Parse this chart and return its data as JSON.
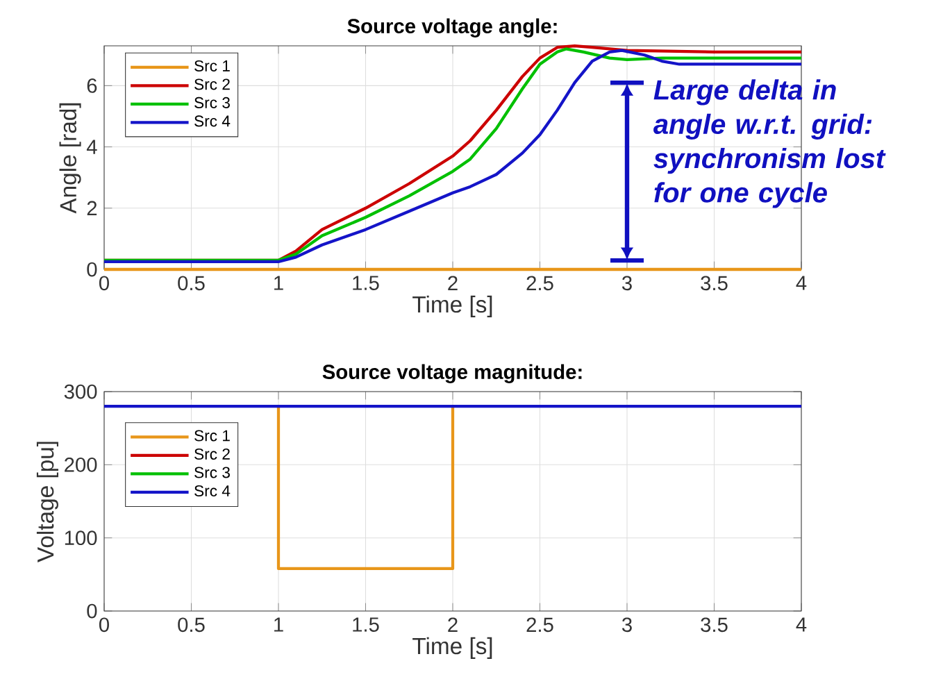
{
  "chart_data": [
    {
      "type": "line",
      "title": "Source voltage angle:",
      "xlabel": "Time [s]",
      "ylabel": "Angle [rad]",
      "xlim": [
        0,
        4
      ],
      "xticks": [
        0,
        0.5,
        1,
        1.5,
        2,
        2.5,
        3,
        3.5,
        4
      ],
      "ylim": [
        0,
        7.3
      ],
      "yticks": [
        0,
        2,
        4,
        6
      ],
      "grid": true,
      "legend": "top left",
      "line_style": "solid",
      "series": [
        {
          "name": "Src 1",
          "color": "#e8961a",
          "x": [
            0,
            4
          ],
          "values": [
            0,
            0
          ]
        },
        {
          "name": "Src 2",
          "color": "#cc0000",
          "x": [
            0,
            1,
            1.1,
            1.25,
            1.5,
            1.75,
            2,
            2.1,
            2.25,
            2.4,
            2.5,
            2.6,
            2.7,
            2.8,
            3,
            3.5,
            4
          ],
          "values": [
            0.3,
            0.3,
            0.6,
            1.3,
            2.0,
            2.8,
            3.7,
            4.2,
            5.2,
            6.3,
            6.9,
            7.25,
            7.3,
            7.25,
            7.15,
            7.1,
            7.1
          ]
        },
        {
          "name": "Src 3",
          "color": "#00c000",
          "x": [
            0,
            1,
            1.1,
            1.25,
            1.5,
            1.75,
            2,
            2.1,
            2.25,
            2.4,
            2.5,
            2.6,
            2.65,
            2.75,
            2.9,
            3,
            3.2,
            3.5,
            4
          ],
          "values": [
            0.3,
            0.3,
            0.5,
            1.1,
            1.7,
            2.4,
            3.2,
            3.6,
            4.6,
            5.9,
            6.7,
            7.1,
            7.2,
            7.1,
            6.9,
            6.85,
            6.9,
            6.9,
            6.9
          ]
        },
        {
          "name": "Src 4",
          "color": "#1414c8",
          "x": [
            0,
            1,
            1.1,
            1.25,
            1.5,
            1.75,
            2,
            2.1,
            2.25,
            2.4,
            2.5,
            2.6,
            2.7,
            2.8,
            2.9,
            2.97,
            3.1,
            3.2,
            3.3,
            3.5,
            4
          ],
          "values": [
            0.25,
            0.25,
            0.4,
            0.8,
            1.3,
            1.9,
            2.5,
            2.7,
            3.1,
            3.8,
            4.4,
            5.2,
            6.1,
            6.8,
            7.1,
            7.15,
            7.0,
            6.8,
            6.7,
            6.7,
            6.7
          ]
        }
      ],
      "annotations": [
        "Large delta in angle w.r.t. grid: synchronism lost for one cycle"
      ]
    },
    {
      "type": "line",
      "title": "Source voltage magnitude:",
      "xlabel": "Time [s]",
      "ylabel": "Voltage [pu]",
      "xlim": [
        0,
        4
      ],
      "xticks": [
        0,
        0.5,
        1,
        1.5,
        2,
        2.5,
        3,
        3.5,
        4
      ],
      "ylim": [
        0,
        300
      ],
      "yticks": [
        0,
        100,
        200,
        300
      ],
      "grid": true,
      "legend": "top left",
      "line_style": "solid",
      "series": [
        {
          "name": "Src 1",
          "color": "#e8961a",
          "x": [
            1,
            1,
            2,
            2
          ],
          "values": [
            280,
            58,
            58,
            280
          ]
        },
        {
          "name": "Src 2",
          "color": "#cc0000"
        },
        {
          "name": "Src 3",
          "color": "#00c000"
        },
        {
          "name": "Src 4",
          "color": "#1414c8",
          "x": [
            0,
            4
          ],
          "values": [
            280,
            280
          ]
        }
      ]
    }
  ]
}
